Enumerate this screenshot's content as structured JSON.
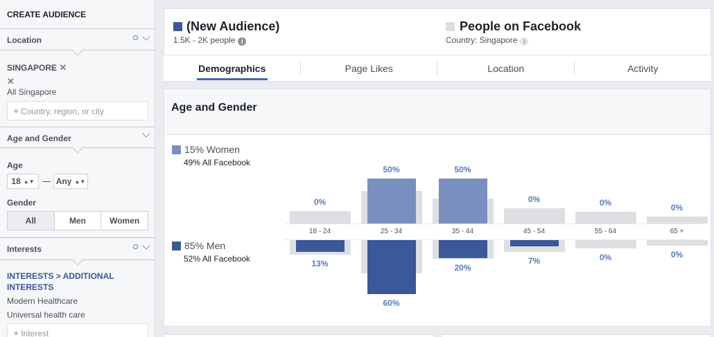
{
  "sidebar": {
    "title": "CREATE AUDIENCE",
    "location": {
      "header": "Location",
      "tag": "SINGAPORE",
      "scope": "All Singapore",
      "placeholder": "Country, region, or city"
    },
    "age_gender": {
      "header": "Age and Gender",
      "age_label": "Age",
      "age_min": "18",
      "age_max": "Any",
      "gender_label": "Gender",
      "gender_options": [
        "All",
        "Men",
        "Women"
      ],
      "gender_selected": "All"
    },
    "interests": {
      "header": "Interests",
      "crumb_a": "INTERESTS",
      "crumb_sep": ">",
      "crumb_b": "ADDITIONAL INTERESTS",
      "items": [
        "Modern Healthcare",
        "Universal health care"
      ],
      "placeholder": "Interest"
    }
  },
  "audience": {
    "name": "(New Audience)",
    "size": "1.5K - 2K people",
    "swatch_color": "#3b5998"
  },
  "comparison": {
    "name": "People on Facebook",
    "country_label": "Country: Singapore",
    "swatch_color": "#dddfe2"
  },
  "tabs": [
    "Demographics",
    "Page Likes",
    "Location",
    "Activity"
  ],
  "active_tab": "Demographics",
  "section": {
    "title": "Age and Gender"
  },
  "legend": {
    "women_main": "15% Women",
    "women_sub": "49% All Facebook",
    "men_main": "85% Men",
    "men_sub": "52% All Facebook",
    "women_color": "#7b8fbf",
    "men_color": "#3b5998",
    "baseline_color": "#dddfe2"
  },
  "chart_data": {
    "type": "bar",
    "categories": [
      "18 - 24",
      "25 - 34",
      "35 - 44",
      "45 - 54",
      "55 - 64",
      "65 +"
    ],
    "series": [
      {
        "name": "Women",
        "values": [
          0,
          50,
          50,
          0,
          0,
          0
        ],
        "labels": [
          "0%",
          "50%",
          "50%",
          "0%",
          "0%",
          "0%"
        ]
      },
      {
        "name": "Men",
        "values": [
          13,
          60,
          20,
          7,
          0,
          0
        ],
        "labels": [
          "13%",
          "60%",
          "20%",
          "7%",
          "0%",
          "0%"
        ]
      }
    ],
    "baseline_women": [
      14,
      36,
      28,
      17,
      13,
      8
    ],
    "baseline_men": [
      16,
      37,
      21,
      13,
      9,
      6
    ],
    "ylim": [
      0,
      60
    ]
  }
}
